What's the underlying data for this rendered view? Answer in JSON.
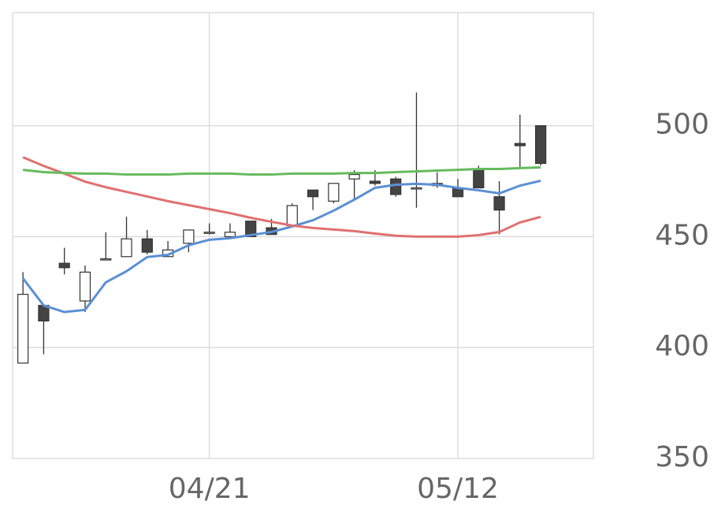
{
  "chart_data": {
    "type": "candlestick",
    "categories": [
      null,
      null,
      null,
      null,
      null,
      null,
      null,
      null,
      null,
      "04/21",
      null,
      null,
      null,
      null,
      null,
      null,
      null,
      null,
      null,
      null,
      null,
      "05/12",
      null,
      null,
      null,
      null
    ],
    "open": [
      393,
      419,
      438,
      421,
      440,
      441,
      449,
      441,
      447,
      452,
      450,
      457,
      454,
      455,
      471,
      466,
      476,
      475,
      476,
      472,
      474,
      472,
      480,
      468,
      492,
      500
    ],
    "high": [
      434,
      419,
      445,
      437,
      452,
      459,
      453,
      448,
      453,
      456,
      456,
      457,
      458,
      465,
      471,
      474,
      480,
      480,
      477,
      515,
      479,
      476,
      482,
      475,
      505,
      500
    ],
    "low": [
      393,
      397,
      433,
      416,
      440,
      441,
      442,
      441,
      443,
      451,
      450,
      450,
      451,
      455,
      462,
      465,
      467,
      473,
      468,
      463,
      472,
      468,
      472,
      451,
      481,
      482
    ],
    "close": [
      424,
      412,
      436,
      434,
      440,
      449,
      443,
      444,
      453,
      452,
      452,
      450,
      451,
      464,
      468,
      474,
      478,
      474,
      469,
      472,
      473,
      468,
      472,
      462,
      491,
      483
    ],
    "up_color": "#ffffff",
    "down_color": "#444444",
    "lines": [
      {
        "color": "#5b8fd4",
        "values": [
          431.2,
          419,
          416,
          417,
          429.4,
          434.4,
          440.8,
          441.8,
          446.1,
          448.6,
          449.3,
          450.7,
          452.1,
          454.6,
          457.4,
          461.7,
          466.7,
          472,
          473.4,
          473.8,
          473.4,
          472,
          470.9,
          469.5,
          473,
          475.2
        ]
      },
      {
        "color": "#e07070",
        "values": [
          485.8,
          481.9,
          478.4,
          474.8,
          472.3,
          470.2,
          468.1,
          466,
          464.2,
          462.4,
          460.6,
          458.5,
          456.7,
          455,
          453.9,
          453.2,
          452.5,
          451.4,
          450.4,
          450,
          450,
          450,
          450.7,
          452.1,
          456.4,
          458.9
        ]
      },
      {
        "color": "#66bb5e",
        "values": [
          480.1,
          479.1,
          478.7,
          478.4,
          478.4,
          478,
          478,
          478,
          478.4,
          478.4,
          478.4,
          478,
          478,
          478.4,
          478.4,
          478.4,
          478.7,
          478.7,
          479.1,
          479.4,
          479.8,
          480.1,
          480.5,
          480.5,
          480.9,
          481.2
        ]
      }
    ],
    "ylim": [
      350,
      551
    ],
    "yticks": [
      350,
      400,
      450,
      500
    ],
    "grid": true
  }
}
